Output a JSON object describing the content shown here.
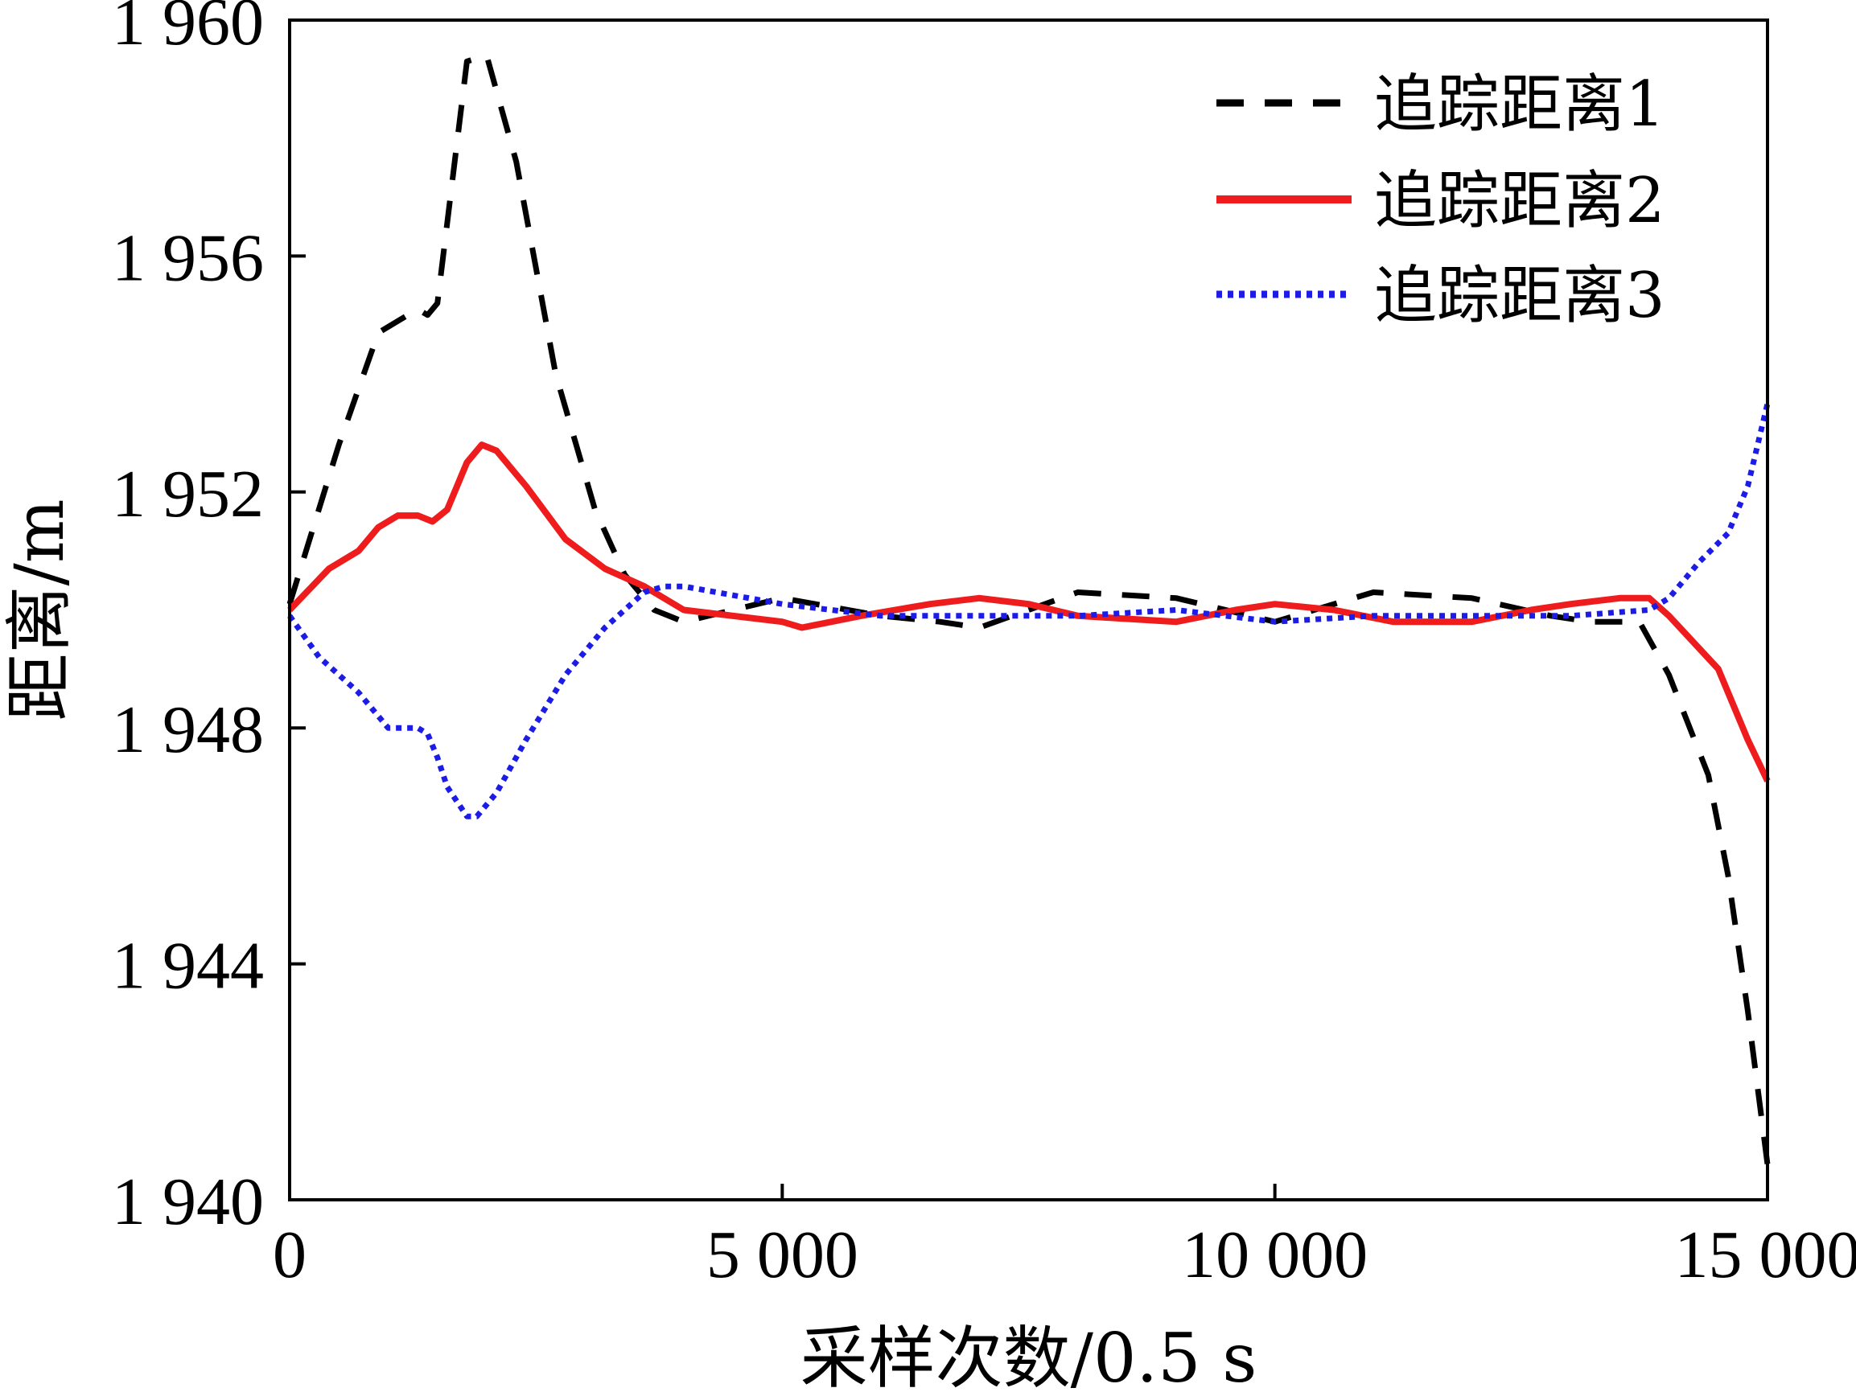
{
  "chart_data": {
    "type": "line",
    "title": "",
    "xlabel": "采样次数/0.5 s",
    "ylabel": "距离/m",
    "xlim": [
      0,
      15000
    ],
    "ylim": [
      1940,
      1960
    ],
    "x_ticks": [
      0,
      5000,
      10000,
      15000
    ],
    "x_tick_labels": [
      "0",
      "5 000",
      "10 000",
      "15 000"
    ],
    "y_ticks": [
      1940,
      1944,
      1948,
      1952,
      1956,
      1960
    ],
    "y_tick_labels": [
      "1 940",
      "1 944",
      "1 948",
      "1 952",
      "1 956",
      "1 960"
    ],
    "grid": false,
    "legend_position": "top-right",
    "series": [
      {
        "name": "追踪距离1",
        "color": "#000000",
        "style": "dashed",
        "x": [
          0,
          500,
          900,
          1300,
          1400,
          1500,
          1800,
          2000,
          2300,
          2700,
          3100,
          3400,
          3700,
          4000,
          5000,
          6000,
          6600,
          7000,
          7500,
          8000,
          9000,
          10000,
          11000,
          12000,
          12800,
          13200,
          13700,
          14000,
          14400,
          14600,
          14800,
          15000
        ],
        "values": [
          1950.1,
          1952.8,
          1954.7,
          1955.1,
          1955.0,
          1955.2,
          1959.3,
          1959.4,
          1957.6,
          1954.0,
          1951.7,
          1950.6,
          1950.0,
          1949.8,
          1950.2,
          1949.9,
          1949.8,
          1949.7,
          1950.0,
          1950.3,
          1950.2,
          1949.8,
          1950.3,
          1950.2,
          1949.9,
          1949.8,
          1949.8,
          1948.9,
          1947.2,
          1945.5,
          1943.2,
          1940.6
        ]
      },
      {
        "name": "追踪距离2",
        "color": "#ee1c1c",
        "style": "solid",
        "x": [
          0,
          400,
          700,
          900,
          1100,
          1300,
          1450,
          1600,
          1800,
          1950,
          2100,
          2400,
          2800,
          3200,
          3600,
          4000,
          5000,
          5200,
          5800,
          6500,
          7000,
          7500,
          8000,
          9000,
          9600,
          10000,
          10600,
          11200,
          12000,
          12600,
          13000,
          13500,
          13800,
          14000,
          14500,
          14800,
          15000
        ],
        "values": [
          1950.0,
          1950.7,
          1951.0,
          1951.4,
          1951.6,
          1951.6,
          1951.5,
          1951.7,
          1952.5,
          1952.8,
          1952.7,
          1952.1,
          1951.2,
          1950.7,
          1950.4,
          1950.0,
          1949.8,
          1949.7,
          1949.9,
          1950.1,
          1950.2,
          1950.1,
          1949.9,
          1949.8,
          1950.0,
          1950.1,
          1950.0,
          1949.8,
          1949.8,
          1950.0,
          1950.1,
          1950.2,
          1950.2,
          1949.9,
          1949.0,
          1947.8,
          1947.1
        ]
      },
      {
        "name": "追踪距离3",
        "color": "#1c1ce6",
        "style": "dotted",
        "x": [
          0,
          300,
          700,
          1000,
          1300,
          1400,
          1500,
          1600,
          1800,
          1900,
          2100,
          2400,
          2800,
          3200,
          3600,
          3800,
          4000,
          5000,
          6000,
          7000,
          8000,
          9000,
          10000,
          11000,
          12000,
          13000,
          13800,
          14000,
          14300,
          14600,
          14800,
          15000
        ],
        "values": [
          1949.9,
          1949.2,
          1948.6,
          1948.0,
          1948.0,
          1947.9,
          1947.5,
          1947.0,
          1946.5,
          1946.5,
          1946.9,
          1947.8,
          1948.9,
          1949.7,
          1950.3,
          1950.4,
          1950.4,
          1950.1,
          1949.9,
          1949.9,
          1949.9,
          1950.0,
          1949.8,
          1949.9,
          1949.9,
          1949.9,
          1950.0,
          1950.2,
          1950.8,
          1951.3,
          1952.1,
          1953.5
        ]
      }
    ]
  }
}
